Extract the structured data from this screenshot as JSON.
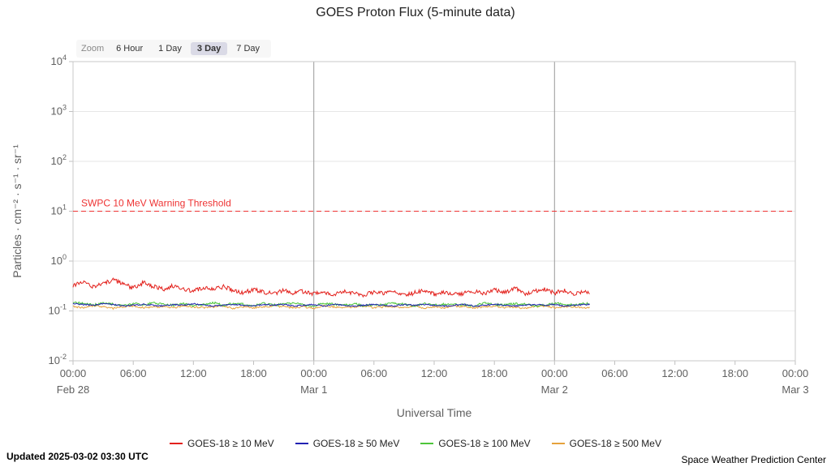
{
  "title": "GOES Proton Flux (5-minute data)",
  "zoom": {
    "label": "Zoom",
    "options": [
      "6 Hour",
      "1 Day",
      "3 Day",
      "7 Day"
    ],
    "active": "3 Day"
  },
  "footer": {
    "updated": "Updated 2025-03-02 03:30 UTC",
    "credit": "Space Weather Prediction Center"
  },
  "chart_data": {
    "type": "line",
    "title": "GOES Proton Flux (5-minute data)",
    "xlabel": "Universal Time",
    "ylabel": "Particles · cm⁻² · s⁻¹ · sr⁻¹",
    "y_scale": "log10",
    "y_min_exp": -2,
    "y_max_exp": 4,
    "x_start_hours": 0,
    "x_end_hours": 72,
    "x_ticks": [
      {
        "hours": 0,
        "label": "00:00",
        "date": "Feb 28"
      },
      {
        "hours": 6,
        "label": "06:00"
      },
      {
        "hours": 12,
        "label": "12:00"
      },
      {
        "hours": 18,
        "label": "18:00"
      },
      {
        "hours": 24,
        "label": "00:00",
        "date": "Mar 1"
      },
      {
        "hours": 30,
        "label": "06:00"
      },
      {
        "hours": 36,
        "label": "12:00"
      },
      {
        "hours": 42,
        "label": "18:00"
      },
      {
        "hours": 48,
        "label": "00:00",
        "date": "Mar 2"
      },
      {
        "hours": 54,
        "label": "06:00"
      },
      {
        "hours": 60,
        "label": "12:00"
      },
      {
        "hours": 66,
        "label": "18:00"
      },
      {
        "hours": 72,
        "label": "00:00",
        "date": "Mar 3"
      }
    ],
    "day_lines_hours": [
      24,
      48
    ],
    "threshold": {
      "label": "SWPC 10 MeV Warning Threshold",
      "value": 10,
      "color": "#ee3333",
      "style": "dashed"
    },
    "sample_interval_hours": 1,
    "data_end_hours": 51.5,
    "series": [
      {
        "name": "GOES-18 ≥ 10 MeV",
        "color": "#e3211c",
        "noise": 0.1,
        "values": [
          0.33,
          0.38,
          0.31,
          0.36,
          0.42,
          0.34,
          0.29,
          0.37,
          0.31,
          0.27,
          0.32,
          0.28,
          0.25,
          0.3,
          0.27,
          0.31,
          0.25,
          0.23,
          0.27,
          0.24,
          0.22,
          0.26,
          0.23,
          0.25,
          0.22,
          0.24,
          0.21,
          0.25,
          0.23,
          0.21,
          0.24,
          0.22,
          0.25,
          0.21,
          0.23,
          0.26,
          0.22,
          0.24,
          0.21,
          0.23,
          0.25,
          0.22,
          0.27,
          0.23,
          0.29,
          0.22,
          0.25,
          0.28,
          0.23,
          0.26,
          0.22,
          0.24
        ]
      },
      {
        "name": "GOES-18 ≥ 50 MeV",
        "color": "#2222b2",
        "noise": 0.03,
        "values": [
          0.14,
          0.135,
          0.13,
          0.14,
          0.135,
          0.125,
          0.13,
          0.135,
          0.13,
          0.125,
          0.135,
          0.13,
          0.14,
          0.13,
          0.125,
          0.13,
          0.135,
          0.13,
          0.125,
          0.135,
          0.13,
          0.135,
          0.125,
          0.13,
          0.135,
          0.125,
          0.135,
          0.13,
          0.125,
          0.13,
          0.135,
          0.13,
          0.125,
          0.135,
          0.13,
          0.135,
          0.13,
          0.125,
          0.13,
          0.135,
          0.125,
          0.13,
          0.135,
          0.13,
          0.125,
          0.13,
          0.135,
          0.13,
          0.135,
          0.125,
          0.13,
          0.135
        ]
      },
      {
        "name": "GOES-18 ≥ 100 MeV",
        "color": "#4dc53a",
        "noise": 0.05,
        "values": [
          0.15,
          0.14,
          0.132,
          0.145,
          0.136,
          0.126,
          0.142,
          0.13,
          0.146,
          0.136,
          0.13,
          0.141,
          0.126,
          0.136,
          0.146,
          0.131,
          0.141,
          0.136,
          0.126,
          0.141,
          0.131,
          0.136,
          0.146,
          0.131,
          0.126,
          0.141,
          0.136,
          0.131,
          0.141,
          0.126,
          0.136,
          0.131,
          0.146,
          0.136,
          0.126,
          0.141,
          0.131,
          0.136,
          0.141,
          0.131,
          0.126,
          0.146,
          0.136,
          0.131,
          0.141,
          0.136,
          0.126,
          0.131,
          0.141,
          0.136,
          0.131,
          0.141
        ]
      },
      {
        "name": "GOES-18 ≥ 500 MeV",
        "color": "#e6a23c",
        "noise": 0.04,
        "values": [
          0.122,
          0.116,
          0.126,
          0.121,
          0.112,
          0.121,
          0.126,
          0.116,
          0.121,
          0.121,
          0.116,
          0.126,
          0.121,
          0.116,
          0.121,
          0.126,
          0.112,
          0.121,
          0.116,
          0.121,
          0.126,
          0.121,
          0.116,
          0.121,
          0.112,
          0.126,
          0.121,
          0.116,
          0.121,
          0.126,
          0.116,
          0.121,
          0.121,
          0.116,
          0.126,
          0.112,
          0.121,
          0.116,
          0.126,
          0.121,
          0.116,
          0.121,
          0.126,
          0.116,
          0.121,
          0.112,
          0.121,
          0.126,
          0.116,
          0.121,
          0.121,
          0.116
        ]
      }
    ]
  }
}
